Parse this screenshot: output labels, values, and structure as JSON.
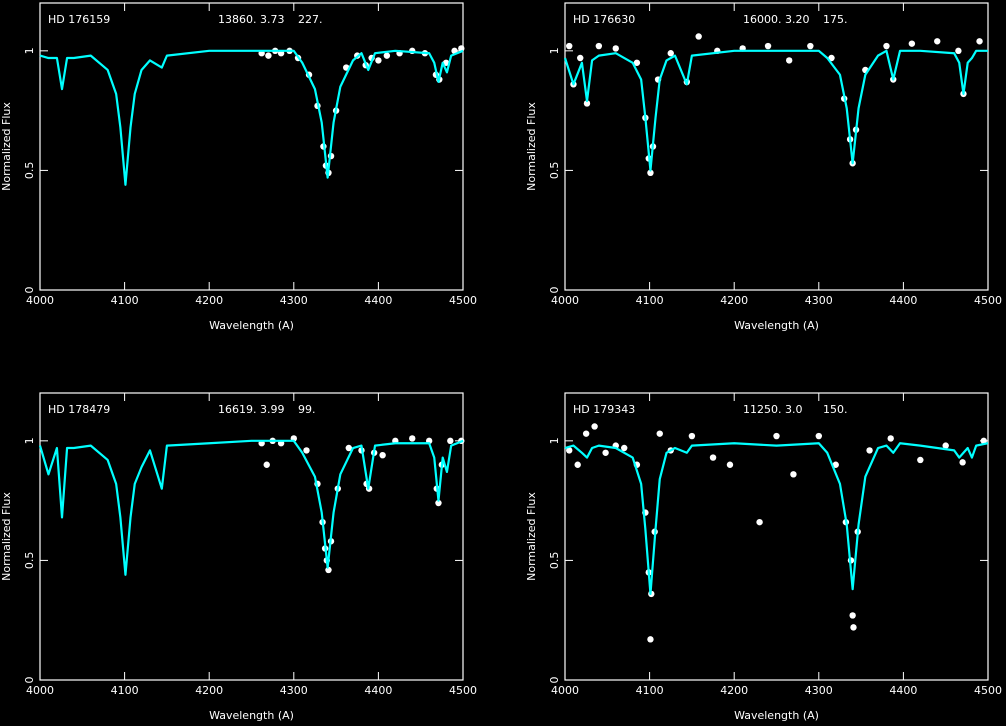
{
  "chart_data": [
    {
      "type": "line",
      "title": "HD 176159",
      "annotations": [
        "13860.",
        "3.73",
        "227."
      ],
      "xlabel": "Wavelength (A)",
      "ylabel": "Normalized Flux",
      "xlim": [
        4000,
        4500
      ],
      "ylim": [
        0,
        1.2
      ],
      "xticks": [
        4000,
        4100,
        4200,
        4300,
        4400,
        4500
      ],
      "yticks": [
        0,
        0.5,
        1
      ],
      "series": [
        {
          "type": "scatter",
          "color": "#ffffff",
          "x": [
            4262,
            4270,
            4278,
            4285,
            4295,
            4305,
            4318,
            4328,
            4335,
            4338,
            4341,
            4344,
            4350,
            4362,
            4375,
            4385,
            4392,
            4400,
            4410,
            4425,
            4440,
            4455,
            4468,
            4472,
            4480,
            4490,
            4498
          ],
          "values": [
            0.99,
            0.98,
            1.0,
            0.99,
            1.0,
            0.97,
            0.9,
            0.77,
            0.6,
            0.52,
            0.49,
            0.56,
            0.75,
            0.93,
            0.98,
            0.94,
            0.97,
            0.96,
            0.98,
            0.99,
            1.0,
            0.99,
            0.9,
            0.88,
            0.95,
            1.0,
            1.01
          ]
        },
        {
          "type": "line",
          "color": "#00ffff",
          "x": [
            4000,
            4010,
            4020,
            4026,
            4032,
            4040,
            4060,
            4080,
            4090,
            4095,
            4101,
            4107,
            4112,
            4120,
            4130,
            4144,
            4150,
            4200,
            4250,
            4300,
            4310,
            4325,
            4333,
            4340,
            4347,
            4355,
            4370,
            4380,
            4388,
            4396,
            4420,
            4460,
            4466,
            4471,
            4476,
            4481,
            4486,
            4500
          ],
          "values": [
            0.98,
            0.97,
            0.97,
            0.84,
            0.97,
            0.97,
            0.98,
            0.92,
            0.82,
            0.68,
            0.44,
            0.68,
            0.82,
            0.92,
            0.96,
            0.93,
            0.98,
            1.0,
            1.0,
            1.0,
            0.95,
            0.84,
            0.7,
            0.47,
            0.7,
            0.85,
            0.96,
            0.99,
            0.92,
            0.99,
            1.0,
            0.99,
            0.95,
            0.87,
            0.95,
            0.91,
            0.98,
            1.0
          ]
        }
      ]
    },
    {
      "type": "line",
      "title": "HD 176630",
      "annotations": [
        "16000.",
        "3.20",
        "175."
      ],
      "xlabel": "Wavelength (A)",
      "ylabel": "Normalized Flux",
      "xlim": [
        4000,
        4500
      ],
      "ylim": [
        0,
        1.2
      ],
      "xticks": [
        4000,
        4100,
        4200,
        4300,
        4400,
        4500
      ],
      "yticks": [
        0,
        0.5,
        1
      ],
      "series": [
        {
          "type": "scatter",
          "color": "#ffffff",
          "x": [
            4005,
            4010,
            4018,
            4026,
            4040,
            4060,
            4085,
            4095,
            4099,
            4101,
            4104,
            4110,
            4125,
            4144,
            4158,
            4180,
            4210,
            4240,
            4265,
            4290,
            4315,
            4330,
            4337,
            4340,
            4344,
            4355,
            4380,
            4388,
            4410,
            4440,
            4465,
            4471,
            4490
          ],
          "values": [
            1.02,
            0.86,
            0.97,
            0.78,
            1.02,
            1.01,
            0.95,
            0.72,
            0.55,
            0.49,
            0.6,
            0.88,
            0.99,
            0.87,
            1.06,
            1.0,
            1.01,
            1.02,
            0.96,
            1.02,
            0.97,
            0.8,
            0.63,
            0.53,
            0.67,
            0.92,
            1.02,
            0.88,
            1.03,
            1.04,
            1.0,
            0.82,
            1.04
          ]
        },
        {
          "type": "line",
          "color": "#00ffff",
          "x": [
            4000,
            4010,
            4020,
            4026,
            4032,
            4040,
            4060,
            4080,
            4090,
            4095,
            4101,
            4107,
            4112,
            4120,
            4130,
            4144,
            4150,
            4200,
            4250,
            4300,
            4310,
            4325,
            4333,
            4340,
            4347,
            4355,
            4370,
            4380,
            4388,
            4396,
            4420,
            4460,
            4466,
            4471,
            4476,
            4481,
            4486,
            4500
          ],
          "values": [
            0.97,
            0.86,
            0.95,
            0.79,
            0.96,
            0.98,
            0.99,
            0.95,
            0.88,
            0.72,
            0.5,
            0.72,
            0.88,
            0.96,
            0.98,
            0.86,
            0.98,
            1.0,
            1.0,
            1.0,
            0.97,
            0.9,
            0.76,
            0.53,
            0.76,
            0.9,
            0.98,
            1.0,
            0.88,
            1.0,
            1.0,
            0.99,
            0.95,
            0.82,
            0.95,
            0.97,
            1.0,
            1.0
          ]
        }
      ]
    },
    {
      "type": "line",
      "title": "HD 178479",
      "annotations": [
        "16619.",
        "3.99",
        "99."
      ],
      "xlabel": "Wavelength (A)",
      "ylabel": "Normalized Flux",
      "xlim": [
        4000,
        4500
      ],
      "ylim": [
        0,
        1.2
      ],
      "xticks": [
        4000,
        4100,
        4200,
        4300,
        4400,
        4500
      ],
      "yticks": [
        0,
        0.5,
        1
      ],
      "series": [
        {
          "type": "scatter",
          "color": "#ffffff",
          "x": [
            4262,
            4268,
            4275,
            4285,
            4300,
            4315,
            4328,
            4334,
            4337,
            4339,
            4341,
            4344,
            4352,
            4365,
            4380,
            4386,
            4389,
            4395,
            4405,
            4420,
            4440,
            4460,
            4469,
            4471,
            4475,
            4485,
            4498
          ],
          "values": [
            0.99,
            0.9,
            1.0,
            0.99,
            1.01,
            0.96,
            0.82,
            0.66,
            0.55,
            0.5,
            0.46,
            0.58,
            0.8,
            0.97,
            0.96,
            0.82,
            0.8,
            0.95,
            0.94,
            1.0,
            1.01,
            1.0,
            0.8,
            0.74,
            0.9,
            1.0,
            1.0
          ]
        },
        {
          "type": "line",
          "color": "#00ffff",
          "x": [
            4000,
            4010,
            4020,
            4026,
            4032,
            4040,
            4060,
            4080,
            4090,
            4095,
            4101,
            4107,
            4112,
            4120,
            4130,
            4144,
            4150,
            4200,
            4250,
            4300,
            4310,
            4325,
            4333,
            4340,
            4347,
            4355,
            4370,
            4380,
            4388,
            4396,
            4420,
            4460,
            4466,
            4471,
            4476,
            4481,
            4486,
            4500
          ],
          "values": [
            0.98,
            0.86,
            0.97,
            0.68,
            0.97,
            0.97,
            0.98,
            0.92,
            0.82,
            0.68,
            0.44,
            0.68,
            0.82,
            0.89,
            0.96,
            0.8,
            0.98,
            0.99,
            1.0,
            1.0,
            0.95,
            0.85,
            0.7,
            0.47,
            0.7,
            0.86,
            0.97,
            0.98,
            0.8,
            0.98,
            0.99,
            0.99,
            0.93,
            0.75,
            0.93,
            0.87,
            0.98,
            1.0
          ]
        }
      ]
    },
    {
      "type": "line",
      "title": "HD 179343",
      "annotations": [
        "11250.",
        "3.0",
        "150."
      ],
      "xlabel": "Wavelength (A)",
      "ylabel": "Normalized Flux",
      "xlim": [
        4000,
        4500
      ],
      "ylim": [
        0,
        1.2
      ],
      "xticks": [
        4000,
        4100,
        4200,
        4300,
        4400,
        4500
      ],
      "yticks": [
        0,
        0.5,
        1
      ],
      "series": [
        {
          "type": "scatter",
          "color": "#ffffff",
          "x": [
            4005,
            4015,
            4025,
            4035,
            4048,
            4060,
            4070,
            4085,
            4095,
            4099,
            4101,
            4102,
            4106,
            4112,
            4125,
            4150,
            4175,
            4195,
            4230,
            4250,
            4270,
            4300,
            4320,
            4332,
            4338,
            4340,
            4341,
            4346,
            4360,
            4385,
            4420,
            4450,
            4470,
            4495
          ],
          "values": [
            0.96,
            0.9,
            1.03,
            1.06,
            0.95,
            0.98,
            0.97,
            0.9,
            0.7,
            0.45,
            0.17,
            0.36,
            0.62,
            1.03,
            0.96,
            1.02,
            0.93,
            0.9,
            0.66,
            1.02,
            0.86,
            1.02,
            0.9,
            0.66,
            0.5,
            0.27,
            0.22,
            0.62,
            0.96,
            1.01,
            0.92,
            0.98,
            0.91,
            1.0
          ]
        },
        {
          "type": "line",
          "color": "#00ffff",
          "x": [
            4000,
            4010,
            4020,
            4026,
            4032,
            4040,
            4060,
            4080,
            4090,
            4095,
            4101,
            4107,
            4112,
            4120,
            4130,
            4144,
            4150,
            4200,
            4250,
            4300,
            4310,
            4325,
            4333,
            4340,
            4347,
            4355,
            4370,
            4380,
            4388,
            4396,
            4420,
            4460,
            4466,
            4471,
            4476,
            4481,
            4486,
            4500
          ],
          "values": [
            0.97,
            0.98,
            0.95,
            0.93,
            0.97,
            0.98,
            0.97,
            0.93,
            0.82,
            0.63,
            0.36,
            0.63,
            0.84,
            0.95,
            0.97,
            0.95,
            0.98,
            0.99,
            0.98,
            0.99,
            0.95,
            0.82,
            0.65,
            0.38,
            0.65,
            0.85,
            0.97,
            0.98,
            0.95,
            0.99,
            0.98,
            0.96,
            0.93,
            0.95,
            0.97,
            0.93,
            0.98,
            0.99
          ]
        }
      ]
    }
  ]
}
